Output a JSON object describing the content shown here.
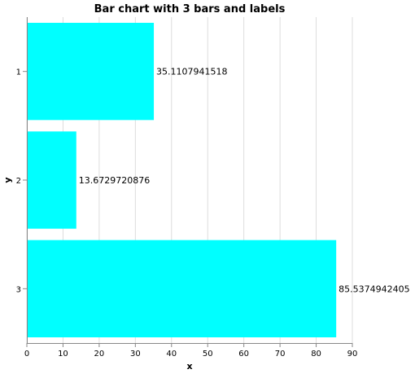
{
  "chart_data": {
    "type": "bar",
    "orientation": "horizontal",
    "title": "Bar chart with 3 bars and labels",
    "xlabel": "x",
    "ylabel": "y",
    "categories": [
      "1",
      "2",
      "3"
    ],
    "values": [
      35.1107941518,
      13.6729720876,
      85.5374942405
    ],
    "value_labels": [
      "35.1107941518",
      "13.6729720876",
      "85.5374942405"
    ],
    "x_ticks": [
      "0",
      "10",
      "20",
      "30",
      "40",
      "50",
      "60",
      "70",
      "80",
      "90"
    ],
    "xlim": [
      0,
      90
    ],
    "grid": true,
    "bar_color": "#00ffff",
    "grid_color": "#dddddd",
    "axis_color": "#888888"
  }
}
